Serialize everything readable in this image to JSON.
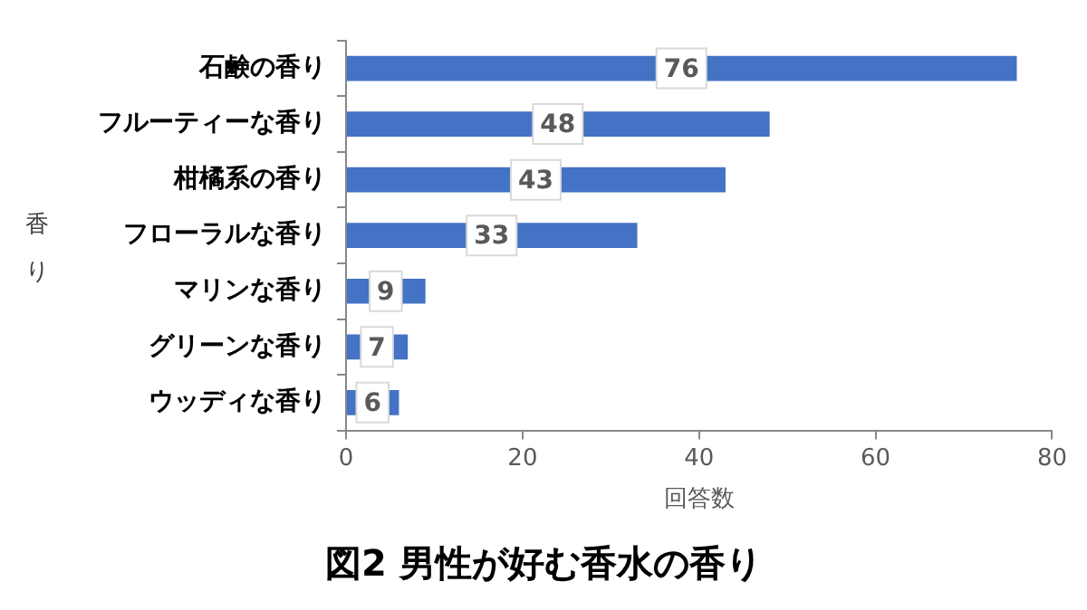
{
  "chart_data": {
    "type": "bar",
    "orientation": "horizontal",
    "title": "図2 男性が好む香水の香り",
    "xlabel": "回答数",
    "ylabel": "香り",
    "categories": [
      "石鹸の香り",
      "フルーティーな香り",
      "柑橘系の香り",
      "フローラルな香り",
      "マリンな香り",
      "グリーンな香り",
      "ウッディな香り"
    ],
    "values": [
      76,
      48,
      43,
      33,
      9,
      7,
      6
    ],
    "color": "#4472c4",
    "xlim": [
      0,
      80
    ],
    "xticks": [
      0,
      20,
      40,
      60,
      80
    ],
    "grid": false,
    "legend": false,
    "data_labels": true
  }
}
